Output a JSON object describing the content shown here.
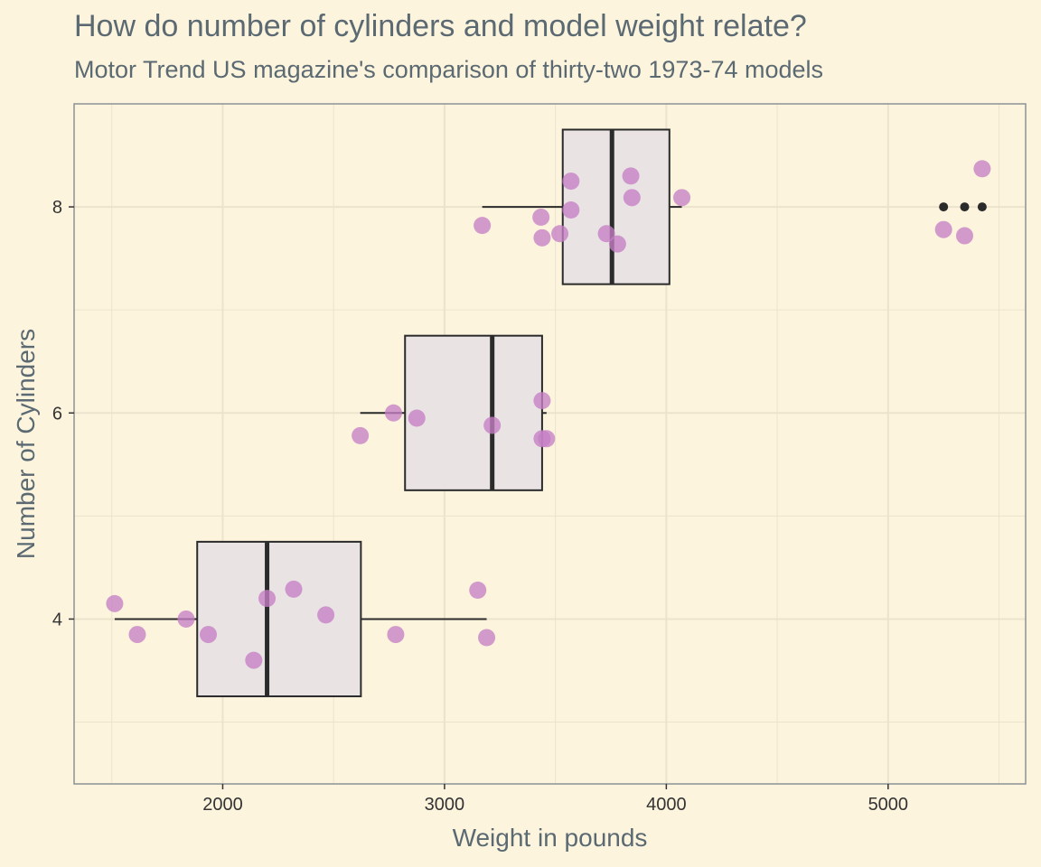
{
  "title": "How do number of cylinders and model weight relate?",
  "subtitle": "Motor Trend US magazine's comparison of thirty-two 1973-74 models",
  "colors": {
    "background": "#fdf4de",
    "grid": "#ece3cc",
    "box_fill": "#e9e3e3",
    "box_stroke": "#2b2b2b",
    "point": "#c57fc5",
    "axis_text": "#5b6a72"
  },
  "chart_data": {
    "type": "boxplot",
    "title": "How do number of cylinders and model weight relate?",
    "subtitle": "Motor Trend US magazine's comparison of thirty-two 1973-74 models",
    "xlabel": "Weight in pounds",
    "ylabel": "Number of Cylinders",
    "xlim": [
      1330,
      5620
    ],
    "ylim": [
      2.4,
      9.0
    ],
    "x_ticks": [
      2000,
      3000,
      4000,
      5000
    ],
    "y_ticks": [
      4,
      6,
      8
    ],
    "grid": true,
    "boxes": [
      {
        "group": 4,
        "min": 1513,
        "q1": 1885,
        "median": 2200,
        "q3": 2623,
        "max": 3190,
        "outliers": []
      },
      {
        "group": 6,
        "min": 2620,
        "q1": 2822,
        "median": 3215,
        "q3": 3440,
        "max": 3460,
        "outliers": []
      },
      {
        "group": 8,
        "min": 3170,
        "q1": 3533,
        "median": 3755,
        "q3": 4014,
        "max": 4070,
        "outliers": [
          5250,
          5345,
          5424
        ]
      }
    ],
    "points": [
      {
        "x": 1513,
        "y": 4.15
      },
      {
        "x": 1615,
        "y": 3.85
      },
      {
        "x": 1835,
        "y": 4.0
      },
      {
        "x": 1935,
        "y": 3.85
      },
      {
        "x": 2140,
        "y": 3.6
      },
      {
        "x": 2200,
        "y": 4.2
      },
      {
        "x": 2320,
        "y": 4.29
      },
      {
        "x": 2465,
        "y": 4.04
      },
      {
        "x": 2780,
        "y": 3.85
      },
      {
        "x": 3150,
        "y": 4.28
      },
      {
        "x": 3190,
        "y": 3.82
      },
      {
        "x": 2620,
        "y": 5.78
      },
      {
        "x": 2770,
        "y": 6.0
      },
      {
        "x": 2875,
        "y": 5.95
      },
      {
        "x": 3215,
        "y": 5.88
      },
      {
        "x": 3440,
        "y": 6.12
      },
      {
        "x": 3440,
        "y": 5.75
      },
      {
        "x": 3460,
        "y": 5.75
      },
      {
        "x": 3170,
        "y": 7.82
      },
      {
        "x": 3435,
        "y": 7.9
      },
      {
        "x": 3440,
        "y": 7.7
      },
      {
        "x": 3520,
        "y": 7.74
      },
      {
        "x": 3570,
        "y": 8.25
      },
      {
        "x": 3570,
        "y": 7.97
      },
      {
        "x": 3730,
        "y": 7.74
      },
      {
        "x": 3780,
        "y": 7.64
      },
      {
        "x": 3840,
        "y": 8.3
      },
      {
        "x": 3845,
        "y": 8.09
      },
      {
        "x": 4070,
        "y": 8.09
      },
      {
        "x": 5250,
        "y": 7.78
      },
      {
        "x": 5345,
        "y": 7.72
      },
      {
        "x": 5424,
        "y": 8.37
      }
    ]
  }
}
